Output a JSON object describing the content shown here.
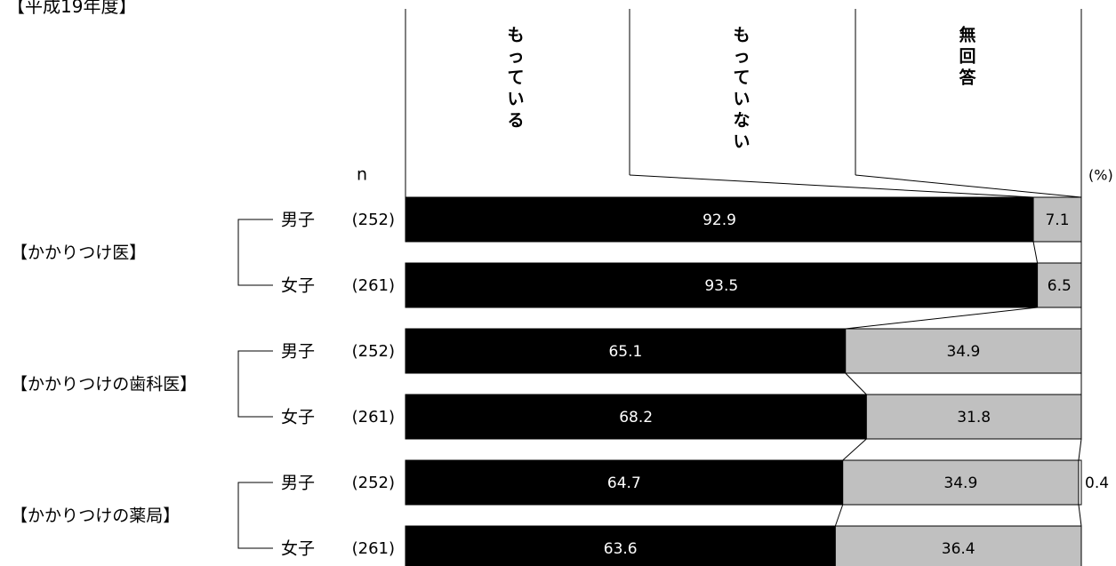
{
  "title": "【平成19年度】",
  "n_label": "n",
  "unit_label": "(%)",
  "chart_data": {
    "type": "bar",
    "orientation": "horizontal",
    "stacked": "100%",
    "title": "【平成19年度】",
    "xlabel": "",
    "ylabel": "",
    "xlim": [
      0,
      100
    ],
    "unit": "(%)",
    "legend_placement": "top",
    "series": [
      {
        "name": "もっている",
        "color": "#000000",
        "text_color": "#ffffff"
      },
      {
        "name": "もっていない",
        "color": "#c0c0c0",
        "text_color": "#000000"
      },
      {
        "name": "無回答",
        "color": "#ffffff",
        "text_color": "#000000"
      }
    ],
    "groups": [
      {
        "label": "【かかりつけ医】",
        "rows": [
          0,
          1
        ]
      },
      {
        "label": "【かかりつけの歯科医】",
        "rows": [
          2,
          3
        ]
      },
      {
        "label": "【かかりつけの薬局】",
        "rows": [
          4,
          5
        ]
      }
    ],
    "rows": [
      {
        "gender": "男子",
        "n": "(252)",
        "values": [
          92.9,
          7.1,
          0
        ],
        "labels": [
          "92.9",
          "7.1",
          ""
        ]
      },
      {
        "gender": "女子",
        "n": "(261)",
        "values": [
          93.5,
          6.5,
          0
        ],
        "labels": [
          "93.5",
          "6.5",
          ""
        ]
      },
      {
        "gender": "男子",
        "n": "(252)",
        "values": [
          65.1,
          34.9,
          0
        ],
        "labels": [
          "65.1",
          "34.9",
          ""
        ]
      },
      {
        "gender": "女子",
        "n": "(261)",
        "values": [
          68.2,
          31.8,
          0
        ],
        "labels": [
          "68.2",
          "31.8",
          ""
        ]
      },
      {
        "gender": "男子",
        "n": "(252)",
        "values": [
          64.7,
          34.9,
          0.4
        ],
        "labels": [
          "64.7",
          "34.9",
          "0.4"
        ]
      },
      {
        "gender": "女子",
        "n": "(261)",
        "values": [
          63.6,
          36.4,
          0
        ],
        "labels": [
          "63.6",
          "36.4",
          ""
        ]
      }
    ]
  }
}
